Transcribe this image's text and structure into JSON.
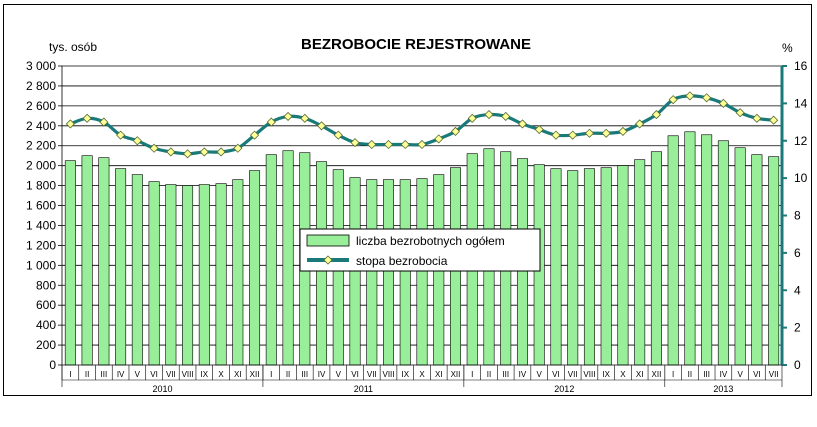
{
  "chart_data": {
    "type": "bar",
    "title": "BEZROBOCIE REJESTROWANE",
    "ylabel_left": "tys. osób",
    "ylabel_right": "%",
    "ylim_left": [
      0,
      3000
    ],
    "ylim_right": [
      0,
      16
    ],
    "yticks_left": [
      "0",
      "200",
      "400",
      "600",
      "800",
      "1 000",
      "1 200",
      "1 400",
      "1 600",
      "1 800",
      "2 000",
      "2 200",
      "2 400",
      "2 600",
      "2 800",
      "3 000"
    ],
    "yticks_right": [
      "0",
      "2",
      "4",
      "6",
      "8",
      "10",
      "12",
      "14",
      "16"
    ],
    "grid": true,
    "legend_position": "center",
    "colors": {
      "bars": "#99ee99",
      "bar_edge": "#000000",
      "line": "#1a7a7a",
      "marker": "#ffff99",
      "marker_edge": "#556b2f",
      "right_axis": "#1a7a7a"
    },
    "years": [
      {
        "label": "2010",
        "months": 12
      },
      {
        "label": "2011",
        "months": 12
      },
      {
        "label": "2012",
        "months": 12
      },
      {
        "label": "2013",
        "months": 7
      }
    ],
    "categories": [
      "I",
      "II",
      "III",
      "IV",
      "V",
      "VI",
      "VII",
      "VIII",
      "IX",
      "X",
      "XI",
      "XII",
      "I",
      "II",
      "III",
      "IV",
      "V",
      "VI",
      "VII",
      "VIII",
      "IX",
      "X",
      "XI",
      "XII",
      "I",
      "II",
      "III",
      "IV",
      "V",
      "VI",
      "VII",
      "VIII",
      "IX",
      "X",
      "XI",
      "XII",
      "I",
      "II",
      "III",
      "IV",
      "V",
      "VI",
      "VII"
    ],
    "series": [
      {
        "name": "liczba bezrobotnych ogółem",
        "type": "bar",
        "axis": "left",
        "values": [
          2050,
          2100,
          2080,
          1970,
          1910,
          1840,
          1810,
          1800,
          1810,
          1820,
          1860,
          1950,
          2110,
          2150,
          2130,
          2040,
          1960,
          1880,
          1860,
          1860,
          1860,
          1870,
          1910,
          1980,
          2120,
          2170,
          2140,
          2070,
          2010,
          1970,
          1950,
          1970,
          1980,
          2000,
          2060,
          2140,
          2300,
          2340,
          2310,
          2250,
          2180,
          2110,
          2090
        ]
      },
      {
        "name": "stopa bezrobocia",
        "type": "line",
        "axis": "right",
        "values": [
          12.9,
          13.2,
          13.0,
          12.3,
          12.0,
          11.6,
          11.4,
          11.3,
          11.4,
          11.4,
          11.6,
          12.3,
          13.0,
          13.3,
          13.2,
          12.8,
          12.3,
          11.9,
          11.8,
          11.8,
          11.8,
          11.8,
          12.1,
          12.5,
          13.2,
          13.4,
          13.3,
          12.9,
          12.6,
          12.3,
          12.3,
          12.4,
          12.4,
          12.5,
          12.9,
          13.4,
          14.2,
          14.4,
          14.3,
          14.0,
          13.5,
          13.2,
          13.1
        ]
      }
    ]
  }
}
